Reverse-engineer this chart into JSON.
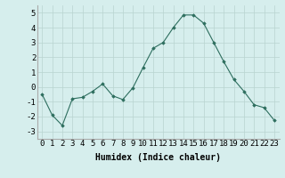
{
  "x": [
    0,
    1,
    2,
    3,
    4,
    5,
    6,
    7,
    8,
    9,
    10,
    11,
    12,
    13,
    14,
    15,
    16,
    17,
    18,
    19,
    20,
    21,
    22,
    23
  ],
  "y": [
    -0.5,
    -1.9,
    -2.6,
    -0.8,
    -0.7,
    -0.3,
    0.2,
    -0.6,
    -0.85,
    -0.05,
    1.3,
    2.6,
    3.0,
    4.0,
    4.85,
    4.85,
    4.3,
    3.0,
    1.7,
    0.5,
    -0.3,
    -1.2,
    -1.4,
    -2.25
  ],
  "xlabel": "Humidex (Indice chaleur)",
  "xlim": [
    -0.5,
    23.5
  ],
  "ylim": [
    -3.5,
    5.5
  ],
  "yticks": [
    -3,
    -2,
    -1,
    0,
    1,
    2,
    3,
    4,
    5
  ],
  "xticks": [
    0,
    1,
    2,
    3,
    4,
    5,
    6,
    7,
    8,
    9,
    10,
    11,
    12,
    13,
    14,
    15,
    16,
    17,
    18,
    19,
    20,
    21,
    22,
    23
  ],
  "line_color": "#2d6e5e",
  "marker": "D",
  "marker_size": 1.8,
  "bg_color": "#d6eeed",
  "grid_color": "#b8d4d0",
  "axis_label_fontsize": 7,
  "tick_fontsize": 6.5
}
